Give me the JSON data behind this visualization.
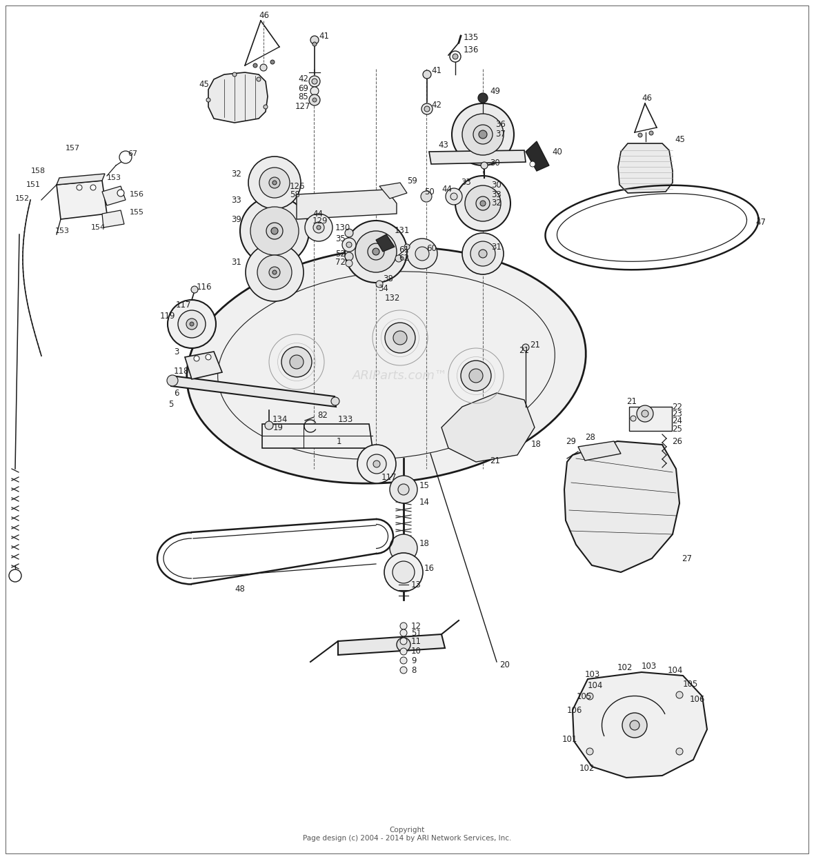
{
  "bg_color": "#ffffff",
  "line_color": "#1a1a1a",
  "text_color": "#222222",
  "copyright": "Copyright\nPage design (c) 2004 - 2014 by ARI Network Services, Inc.",
  "fig_width": 11.8,
  "fig_height": 12.46,
  "dpi": 100
}
